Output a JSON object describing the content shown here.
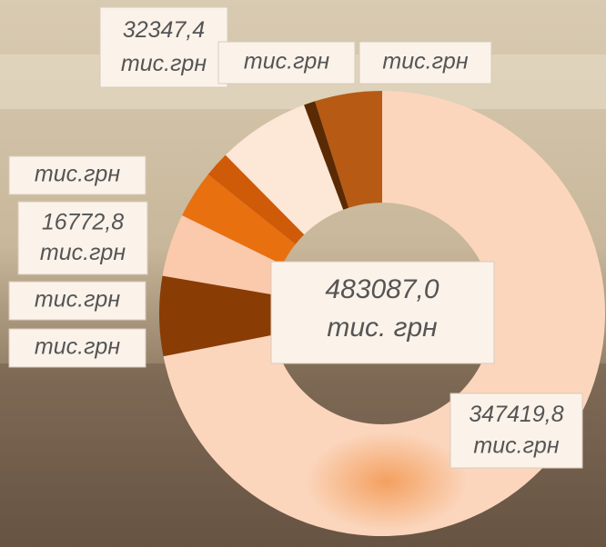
{
  "chart_data": {
    "type": "donut",
    "center_label": "483087,0",
    "center_unit": "тис. грн",
    "unit": "тис.грн",
    "values": [
      347419.8,
      28000,
      22000,
      16772.8,
      9000,
      32347.4,
      4000,
      23547
    ],
    "value_labels": [
      "347419,8",
      null,
      null,
      "16772,8",
      null,
      "32347,4",
      null,
      null
    ],
    "colors": [
      "#fbd6bd",
      "#8a3c05",
      "#fbc9ab",
      "#e8700f",
      "#cf5a08",
      "#fde7d6",
      "#5a2a05",
      "#b65a14"
    ]
  }
}
